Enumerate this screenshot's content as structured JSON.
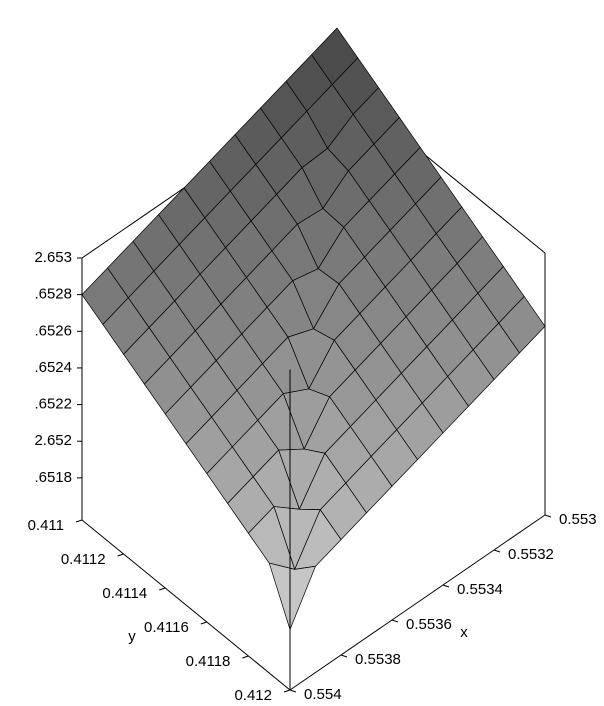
{
  "chart_data": {
    "type": "surface",
    "xlabel": "x",
    "ylabel": "y",
    "x": [
      0.553,
      0.5531,
      0.5532,
      0.5533,
      0.5534,
      0.5535,
      0.5536,
      0.5537,
      0.5538,
      0.5539,
      0.554
    ],
    "y": [
      0.411,
      0.4111,
      0.4112,
      0.4113,
      0.4114,
      0.4115,
      0.4116,
      0.4117,
      0.4118,
      0.4119,
      0.412
    ],
    "z": [
      [
        2.6533,
        2.65325,
        2.6532,
        2.65315,
        2.6531,
        2.65305,
        2.653,
        2.65295,
        2.6529,
        2.65285,
        2.6528
      ],
      [
        2.65323,
        2.65318,
        2.65313,
        2.65308,
        2.65303,
        2.65298,
        2.65293,
        2.65288,
        2.65283,
        2.65278,
        2.65273
      ],
      [
        2.65316,
        2.65311,
        2.65302,
        2.65301,
        2.65296,
        2.65291,
        2.65286,
        2.65281,
        2.65276,
        2.65271,
        2.65266
      ],
      [
        2.65309,
        2.65304,
        2.65299,
        2.65288,
        2.65289,
        2.65284,
        2.65279,
        2.65274,
        2.65269,
        2.65264,
        2.65259
      ],
      [
        2.65302,
        2.65297,
        2.65292,
        2.65287,
        2.65274,
        2.65277,
        2.65272,
        2.65267,
        2.65262,
        2.65257,
        2.65252
      ],
      [
        2.65295,
        2.6529,
        2.65285,
        2.6528,
        2.65275,
        2.6526,
        2.65265,
        2.6526,
        2.65255,
        2.6525,
        2.65245
      ],
      [
        2.65288,
        2.65283,
        2.65278,
        2.65273,
        2.65268,
        2.65263,
        2.65246,
        2.65253,
        2.65248,
        2.65243,
        2.65238
      ],
      [
        2.65281,
        2.65276,
        2.65271,
        2.65266,
        2.65261,
        2.65256,
        2.65251,
        2.65232,
        2.65241,
        2.65236,
        2.65231
      ],
      [
        2.65274,
        2.65269,
        2.65264,
        2.65259,
        2.65254,
        2.65249,
        2.65244,
        2.65239,
        2.65218,
        2.65229,
        2.65224
      ],
      [
        2.65267,
        2.65262,
        2.65257,
        2.65252,
        2.65247,
        2.65242,
        2.65237,
        2.65232,
        2.65227,
        2.65204,
        2.65217
      ],
      [
        2.6526,
        2.65255,
        2.6525,
        2.65245,
        2.6524,
        2.65235,
        2.6523,
        2.65225,
        2.6522,
        2.65215,
        2.6519
      ]
    ],
    "xlim": [
      0.553,
      0.554
    ],
    "ylim": [
      0.411,
      0.412
    ],
    "zlim": [
      2.65157,
      2.653
    ],
    "xticks": [
      0.553,
      0.5532,
      0.5534,
      0.5536,
      0.5538,
      0.554
    ],
    "yticks": [
      0.411,
      0.4112,
      0.4114,
      0.4116,
      0.4118,
      0.412
    ],
    "zticks": [
      {
        "value": 2.6518,
        "label": ".6518"
      },
      2.652,
      {
        "value": 2.6522,
        "label": ".6522"
      },
      {
        "value": 2.6524,
        "label": ".6524"
      },
      {
        "value": 2.6526,
        "label": ".6526"
      },
      {
        "value": 2.6528,
        "label": ".6528"
      },
      2.653
    ]
  }
}
